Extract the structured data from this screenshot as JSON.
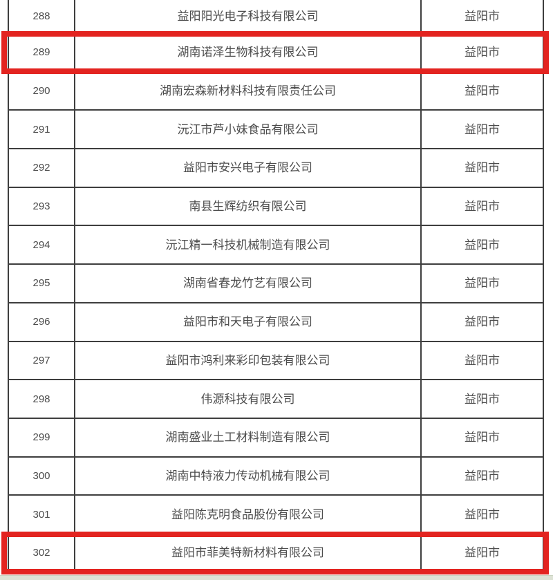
{
  "table": {
    "rows": [
      {
        "no": "288",
        "company": "益阳阳光电子科技有限公司",
        "city": "益阳市",
        "highlighted": false
      },
      {
        "no": "289",
        "company": "湖南诺泽生物科技有限公司",
        "city": "益阳市",
        "highlighted": true
      },
      {
        "no": "290",
        "company": "湖南宏森新材料科技有限责任公司",
        "city": "益阳市",
        "highlighted": false
      },
      {
        "no": "291",
        "company": "沅江市芦小妹食品有限公司",
        "city": "益阳市",
        "highlighted": false
      },
      {
        "no": "292",
        "company": "益阳市安兴电子有限公司",
        "city": "益阳市",
        "highlighted": false
      },
      {
        "no": "293",
        "company": "南县生辉纺织有限公司",
        "city": "益阳市",
        "highlighted": false
      },
      {
        "no": "294",
        "company": "沅江精一科技机械制造有限公司",
        "city": "益阳市",
        "highlighted": false
      },
      {
        "no": "295",
        "company": "湖南省春龙竹艺有限公司",
        "city": "益阳市",
        "highlighted": false
      },
      {
        "no": "296",
        "company": "益阳市和天电子有限公司",
        "city": "益阳市",
        "highlighted": false
      },
      {
        "no": "297",
        "company": "益阳市鸿利来彩印包装有限公司",
        "city": "益阳市",
        "highlighted": false
      },
      {
        "no": "298",
        "company": "伟源科技有限公司",
        "city": "益阳市",
        "highlighted": false
      },
      {
        "no": "299",
        "company": "湖南盛业土工材料制造有限公司",
        "city": "益阳市",
        "highlighted": false
      },
      {
        "no": "300",
        "company": "湖南中特液力传动机械有限公司",
        "city": "益阳市",
        "highlighted": false
      },
      {
        "no": "301",
        "company": "益阳陈克明食品股份有限公司",
        "city": "益阳市",
        "highlighted": false
      },
      {
        "no": "302",
        "company": "益阳市菲美特新材料有限公司",
        "city": "益阳市",
        "highlighted": true
      }
    ]
  },
  "colors": {
    "highlight_red": "#e32420",
    "table_border": "#3e3e3e",
    "text": "#4c4c4c",
    "bottom_strip": "#dde2d5",
    "bottom_strip_edge": "#c9d2bf"
  }
}
